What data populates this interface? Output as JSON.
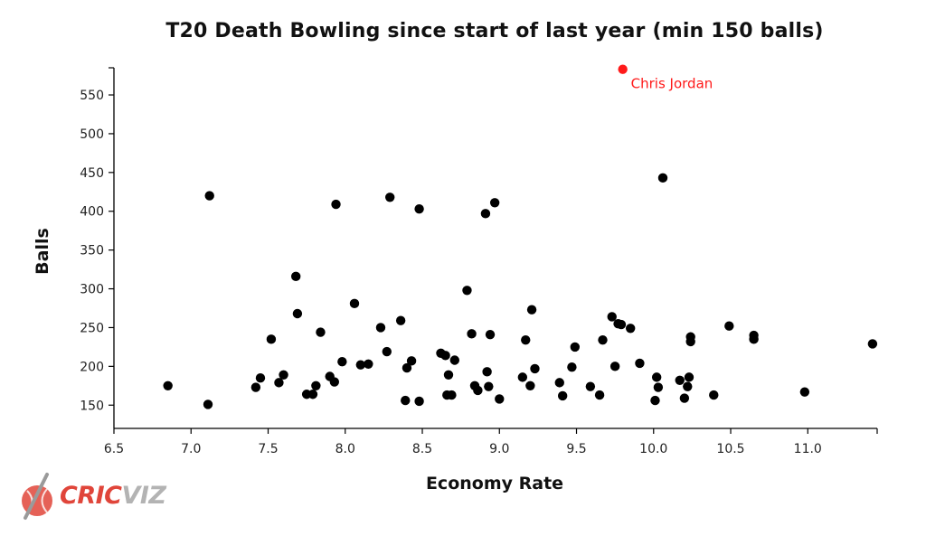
{
  "chart_data": {
    "type": "scatter",
    "title": "T20 Death Bowling since start of last year (min 150 balls)",
    "xlabel": "Economy Rate",
    "ylabel": "Balls",
    "xlim": [
      6.5,
      11.45
    ],
    "ylim": [
      120,
      585
    ],
    "xticks": [
      "6.5",
      "7.0",
      "7.5",
      "8.0",
      "8.5",
      "9.0",
      "9.5",
      "10.0",
      "10.5",
      "11.0"
    ],
    "yticks": [
      "150",
      "200",
      "250",
      "300",
      "350",
      "400",
      "450",
      "500",
      "550"
    ],
    "grid": false,
    "point_color": "#000000",
    "highlight_color": "#ff1a1a",
    "points": [
      [
        6.85,
        175
      ],
      [
        7.11,
        151
      ],
      [
        7.12,
        420
      ],
      [
        7.42,
        173
      ],
      [
        7.45,
        185
      ],
      [
        7.52,
        235
      ],
      [
        7.57,
        179
      ],
      [
        7.6,
        189
      ],
      [
        7.68,
        316
      ],
      [
        7.69,
        268
      ],
      [
        7.75,
        164
      ],
      [
        7.79,
        164
      ],
      [
        7.81,
        175
      ],
      [
        7.84,
        244
      ],
      [
        7.9,
        187
      ],
      [
        7.93,
        180
      ],
      [
        7.94,
        409
      ],
      [
        7.98,
        206
      ],
      [
        8.06,
        281
      ],
      [
        8.1,
        202
      ],
      [
        8.15,
        203
      ],
      [
        8.23,
        250
      ],
      [
        8.27,
        219
      ],
      [
        8.29,
        418
      ],
      [
        8.36,
        259
      ],
      [
        8.39,
        156
      ],
      [
        8.4,
        198
      ],
      [
        8.43,
        207
      ],
      [
        8.48,
        155
      ],
      [
        8.48,
        403
      ],
      [
        8.62,
        217
      ],
      [
        8.65,
        214
      ],
      [
        8.66,
        163
      ],
      [
        8.67,
        189
      ],
      [
        8.69,
        163
      ],
      [
        8.71,
        208
      ],
      [
        8.79,
        298
      ],
      [
        8.82,
        242
      ],
      [
        8.84,
        175
      ],
      [
        8.86,
        169
      ],
      [
        8.91,
        397
      ],
      [
        8.92,
        193
      ],
      [
        8.93,
        174
      ],
      [
        8.94,
        241
      ],
      [
        8.97,
        411
      ],
      [
        9.0,
        158
      ],
      [
        9.15,
        186
      ],
      [
        9.17,
        234
      ],
      [
        9.2,
        175
      ],
      [
        9.21,
        273
      ],
      [
        9.23,
        197
      ],
      [
        9.39,
        179
      ],
      [
        9.41,
        162
      ],
      [
        9.47,
        199
      ],
      [
        9.49,
        225
      ],
      [
        9.59,
        174
      ],
      [
        9.65,
        163
      ],
      [
        9.67,
        234
      ],
      [
        9.73,
        264
      ],
      [
        9.75,
        200
      ],
      [
        9.77,
        255
      ],
      [
        9.79,
        254
      ],
      [
        9.85,
        249
      ],
      [
        9.91,
        204
      ],
      [
        10.01,
        156
      ],
      [
        10.02,
        186
      ],
      [
        10.03,
        173
      ],
      [
        10.06,
        443
      ],
      [
        10.17,
        182
      ],
      [
        10.2,
        159
      ],
      [
        10.22,
        174
      ],
      [
        10.23,
        186
      ],
      [
        10.24,
        232
      ],
      [
        10.24,
        238
      ],
      [
        10.39,
        163
      ],
      [
        10.49,
        252
      ],
      [
        10.65,
        235
      ],
      [
        10.65,
        240
      ],
      [
        10.98,
        167
      ],
      [
        11.42,
        229
      ]
    ],
    "highlight": {
      "label": "Chris Jordan",
      "x": 9.8,
      "y": 583
    }
  },
  "logo": {
    "text_part1": "CRIC",
    "text_part2": "VIZ"
  }
}
